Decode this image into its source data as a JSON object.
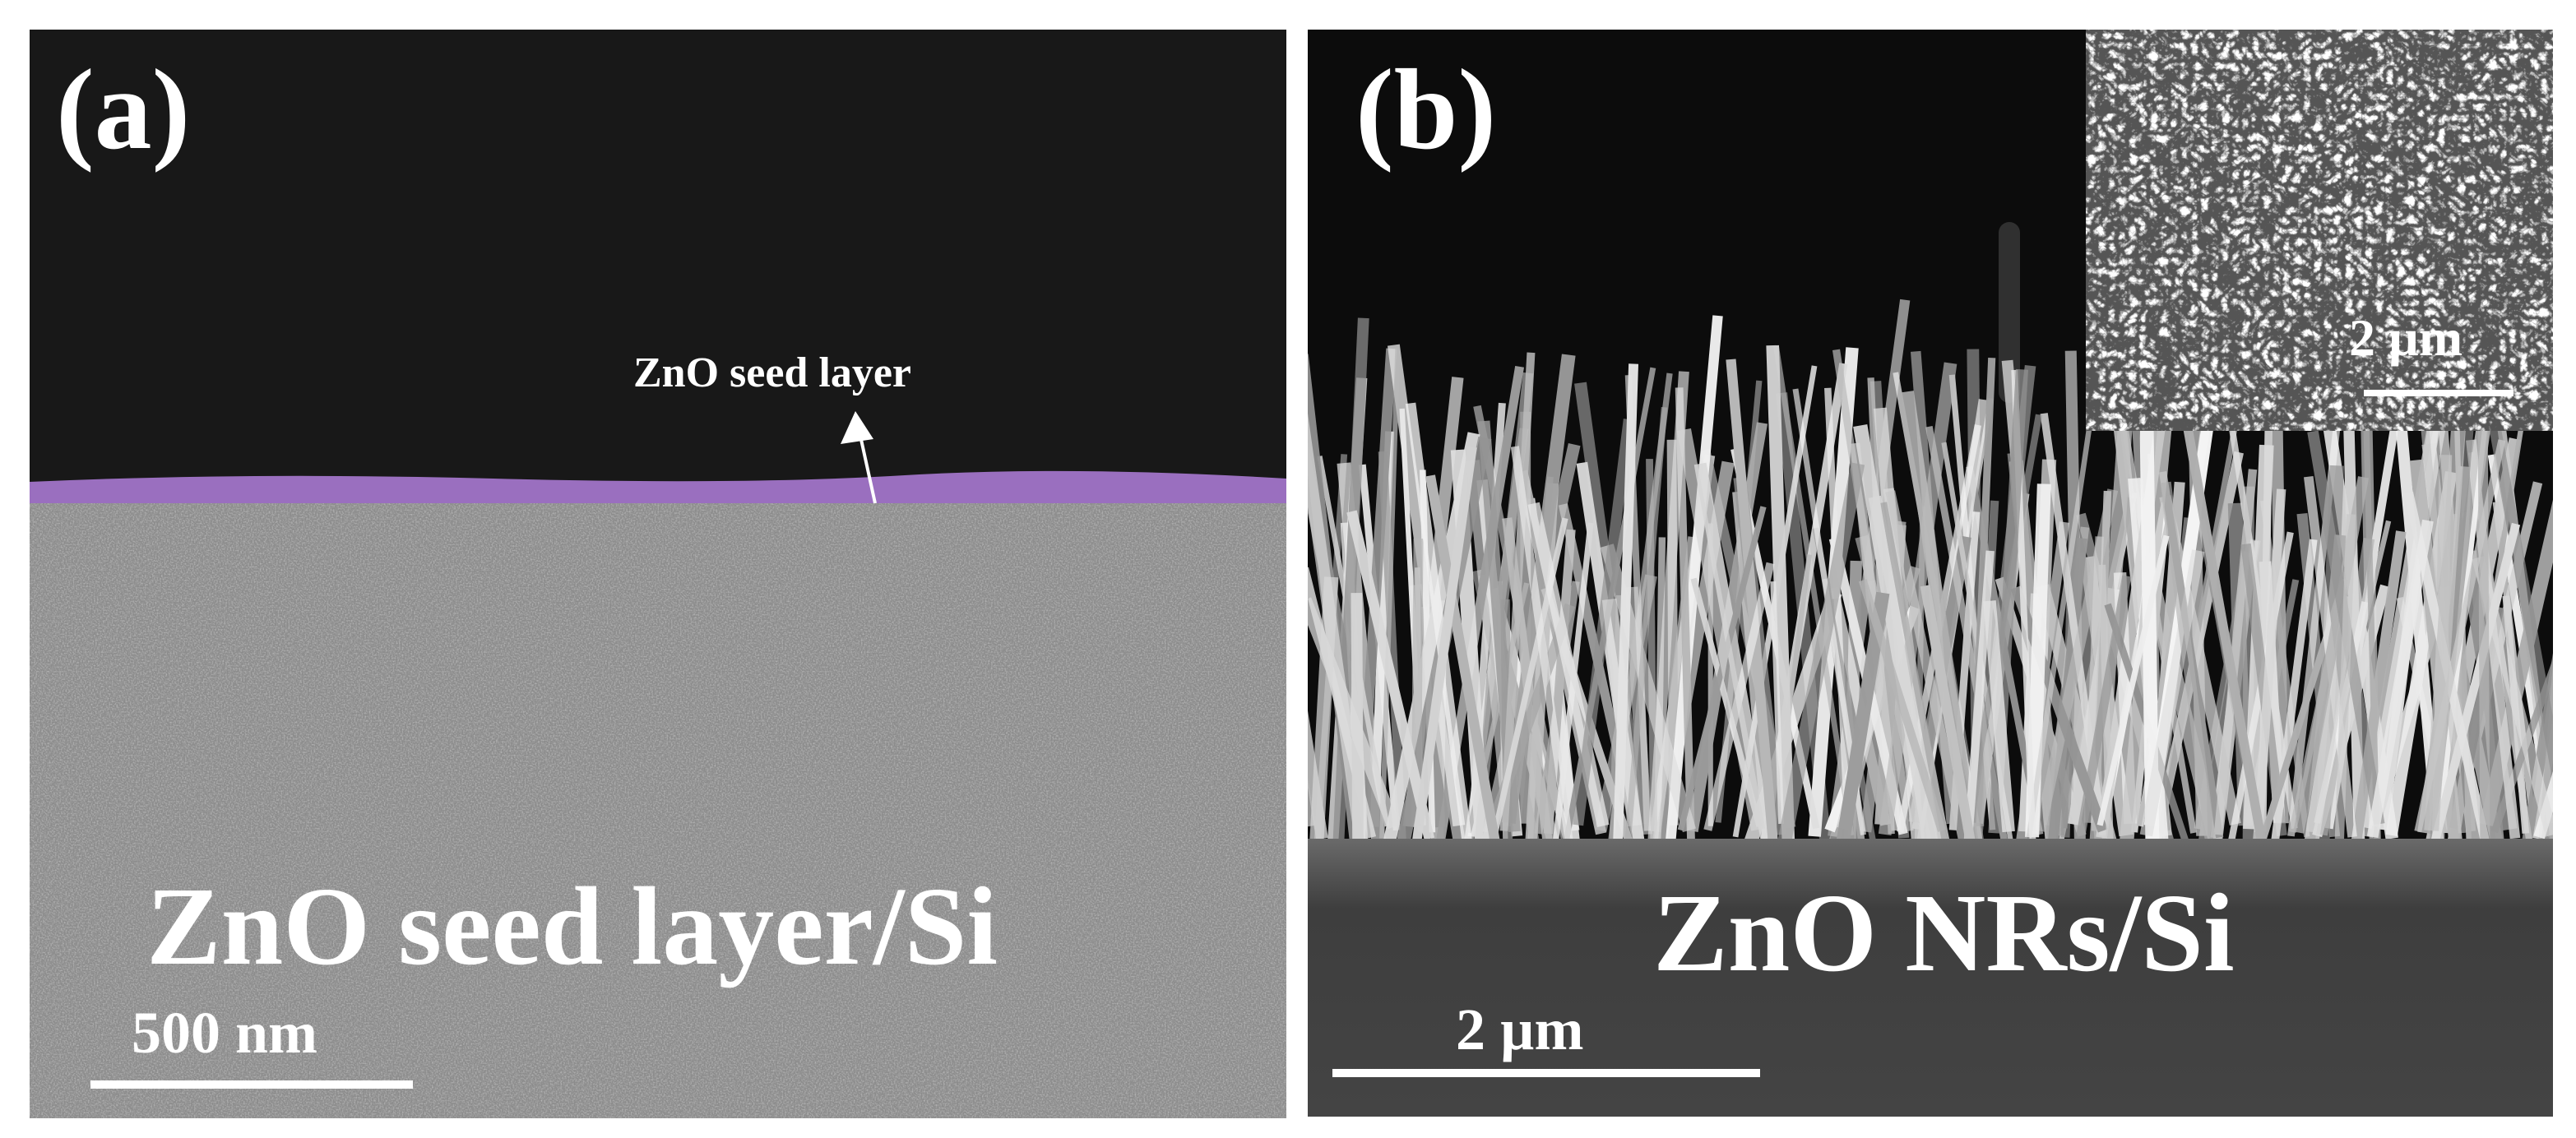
{
  "panels": [
    {
      "label": "(a)",
      "annotation": "ZnO seed layer",
      "caption": "ZnO seed layer/Si",
      "scale_bar": "500 nm"
    },
    {
      "label": "(b)",
      "inset_scale_bar": "2 µm",
      "caption": "ZnO NRs/Si",
      "scale_bar": "2 µm"
    }
  ]
}
